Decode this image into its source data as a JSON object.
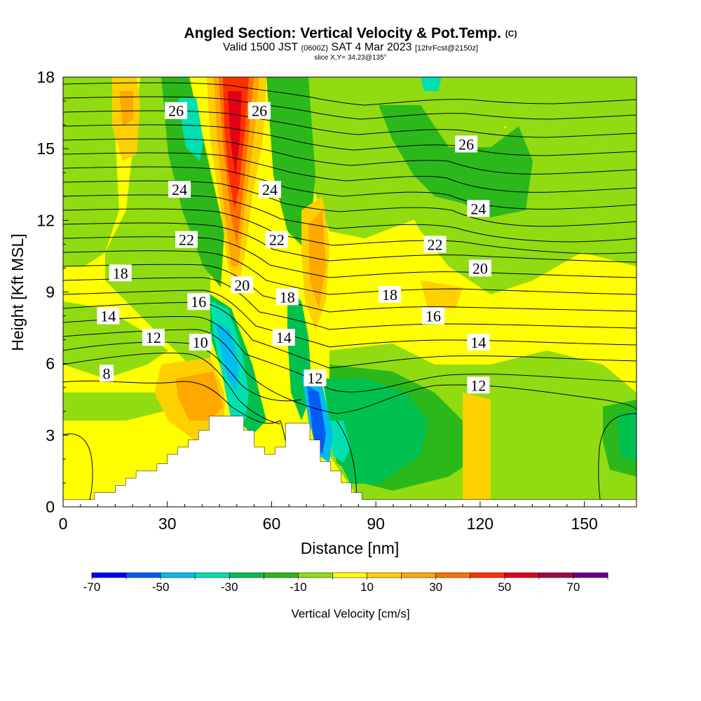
{
  "header": {
    "title": "Angled Section: Vertical Velocity & Pot.Temp.",
    "title_mark": "(C)",
    "valid_prefix": "Valid 1500 JST",
    "valid_utc": "(0600Z)",
    "valid_date": "SAT 4 Mar 2023",
    "forecast_info": "[12hrFcst@2150z]",
    "slice_info": "slice X,Y= 34,23@135°"
  },
  "chart_data": {
    "type": "heatmap",
    "xlabel": "Distance [nm]",
    "ylabel": "Height [Kft MSL]",
    "xlim": [
      0,
      165
    ],
    "ylim": [
      0,
      18
    ],
    "x_ticks": [
      "0",
      "30",
      "60",
      "90",
      "120",
      "150"
    ],
    "y_ticks": [
      "0",
      "3",
      "6",
      "9",
      "12",
      "15",
      "18"
    ],
    "colorbar": {
      "label": "Vertical Velocity [cm/s]",
      "tick_labels": [
        "-70",
        "-50",
        "-30",
        "-10",
        "10",
        "30",
        "50",
        "70"
      ],
      "bounds": [
        -70,
        80
      ],
      "step": 10,
      "colors": [
        "#0000ff",
        "#005cf5",
        "#00bcf0",
        "#00e0b0",
        "#00c050",
        "#2cb81a",
        "#90dc10",
        "#ffff00",
        "#ffd000",
        "#ffa800",
        "#ff7000",
        "#ff3000",
        "#e00018",
        "#a80048",
        "#68008c"
      ]
    },
    "terrain_nm_kft": [
      [
        0,
        0.3
      ],
      [
        9,
        0.3
      ],
      [
        9,
        0.6
      ],
      [
        15,
        0.6
      ],
      [
        15,
        0.9
      ],
      [
        18,
        0.9
      ],
      [
        18,
        1.2
      ],
      [
        21,
        1.2
      ],
      [
        21,
        1.5
      ],
      [
        27,
        1.5
      ],
      [
        27,
        1.8
      ],
      [
        30,
        1.8
      ],
      [
        30,
        2.2
      ],
      [
        33,
        2.2
      ],
      [
        33,
        2.5
      ],
      [
        36,
        2.5
      ],
      [
        36,
        2.8
      ],
      [
        39,
        2.8
      ],
      [
        39,
        3.2
      ],
      [
        42,
        3.2
      ],
      [
        42,
        3.8
      ],
      [
        52,
        3.8
      ],
      [
        52,
        3.2
      ],
      [
        55,
        3.2
      ],
      [
        55,
        2.5
      ],
      [
        58,
        2.5
      ],
      [
        58,
        2.2
      ],
      [
        61,
        2.2
      ],
      [
        61,
        2.5
      ],
      [
        64,
        2.5
      ],
      [
        64,
        3.5
      ],
      [
        71,
        3.5
      ],
      [
        71,
        2.8
      ],
      [
        74,
        2.8
      ],
      [
        74,
        1.9
      ],
      [
        77,
        1.9
      ],
      [
        77,
        1.5
      ],
      [
        80,
        1.5
      ],
      [
        80,
        1.0
      ],
      [
        83,
        1.0
      ],
      [
        83,
        0.6
      ],
      [
        86,
        0.6
      ],
      [
        86,
        0.3
      ],
      [
        165,
        0.3
      ]
    ],
    "potential_temperature_contour_labels": [
      {
        "label": "26",
        "x": 32.5,
        "y": 16.6
      },
      {
        "label": "26",
        "x": 56.5,
        "y": 16.6
      },
      {
        "label": "26",
        "x": 116,
        "y": 15.2
      },
      {
        "label": "24",
        "x": 33.5,
        "y": 13.3
      },
      {
        "label": "24",
        "x": 59.5,
        "y": 13.3
      },
      {
        "label": "24",
        "x": 119.5,
        "y": 12.5
      },
      {
        "label": "22",
        "x": 35.5,
        "y": 11.2
      },
      {
        "label": "22",
        "x": 61.5,
        "y": 11.2
      },
      {
        "label": "22",
        "x": 107,
        "y": 11.0
      },
      {
        "label": "20",
        "x": 51.5,
        "y": 9.3
      },
      {
        "label": "20",
        "x": 120,
        "y": 10.0
      },
      {
        "label": "18",
        "x": 16.5,
        "y": 9.8
      },
      {
        "label": "18",
        "x": 64.5,
        "y": 8.8
      },
      {
        "label": "18",
        "x": 94,
        "y": 8.9
      },
      {
        "label": "16",
        "x": 39,
        "y": 8.6
      },
      {
        "label": "16",
        "x": 106.5,
        "y": 8.0
      },
      {
        "label": "14",
        "x": 13,
        "y": 8.0
      },
      {
        "label": "14",
        "x": 63.5,
        "y": 7.1
      },
      {
        "label": "14",
        "x": 119.5,
        "y": 6.9
      },
      {
        "label": "12",
        "x": 26,
        "y": 7.1
      },
      {
        "label": "12",
        "x": 72.5,
        "y": 5.4
      },
      {
        "label": "12",
        "x": 119.5,
        "y": 5.1
      },
      {
        "label": "10",
        "x": 39.5,
        "y": 6.9
      },
      {
        "label": "8",
        "x": 12.5,
        "y": 5.6
      }
    ]
  }
}
